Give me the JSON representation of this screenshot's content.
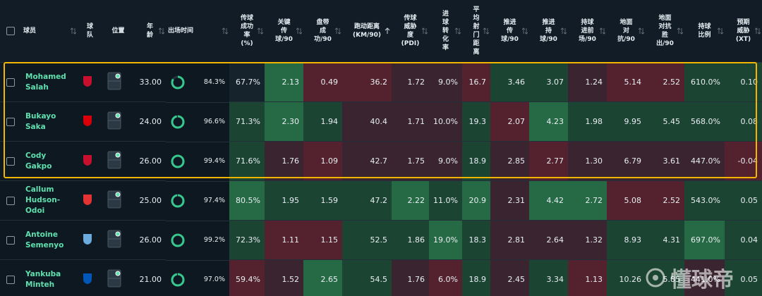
{
  "header": {
    "columns": [
      "球员",
      "球\n队",
      "位置",
      "年\n龄",
      "出场时间",
      "传球\n成功\n率\n(%)",
      "关键\n传\n球/90",
      "盘带\n成\n功/90",
      "跑动距离\n(KM/90)",
      "传球\n威胁\n度\n(PDI)",
      "进\n球\n转\n化\n率",
      "平\n均\n射\n门\n距\n离",
      "推进\n传\n球/90",
      "推进\n持\n球/90",
      "持球\n进前\n场/90",
      "地面\n对\n抗/90",
      "地面\n对抗\n胜\n出/90",
      "持球\n比例",
      "预期\n威胁\n(XT)"
    ]
  },
  "rows": [
    {
      "player": "Mohamed\nSalah",
      "age": "33.00",
      "minutes": "84.3%",
      "stats": [
        "67.7%",
        "2.13",
        "0.49",
        "36.2",
        "1.72",
        "9.0%",
        "16.7",
        "3.46",
        "3.07",
        "1.24",
        "5.14",
        "2.52",
        "610.0%",
        "0.10"
      ]
    },
    {
      "player": "Bukayo\nSaka",
      "age": "24.00",
      "minutes": "96.6%",
      "stats": [
        "71.3%",
        "2.30",
        "1.94",
        "40.4",
        "1.71",
        "10.0%",
        "19.3",
        "2.07",
        "4.23",
        "1.98",
        "9.95",
        "5.45",
        "568.0%",
        "0.08"
      ]
    },
    {
      "player": "Cody\nGakpo",
      "age": "26.00",
      "minutes": "99.4%",
      "stats": [
        "71.6%",
        "1.76",
        "1.09",
        "42.7",
        "1.75",
        "9.0%",
        "18.9",
        "2.85",
        "2.77",
        "1.30",
        "6.79",
        "3.61",
        "447.0%",
        "-0.04"
      ]
    },
    {
      "player": "Callum\nHudson-\nOdoi",
      "age": "25.00",
      "minutes": "97.4%",
      "stats": [
        "80.5%",
        "1.95",
        "1.59",
        "47.2",
        "2.22",
        "11.0%",
        "20.9",
        "2.31",
        "4.42",
        "2.72",
        "5.08",
        "2.52",
        "543.0%",
        "0.05"
      ]
    },
    {
      "player": "Antoine\nSemenyo",
      "age": "26.00",
      "minutes": "99.2%",
      "stats": [
        "72.3%",
        "1.11",
        "1.15",
        "52.5",
        "1.86",
        "19.0%",
        "18.3",
        "2.81",
        "2.64",
        "1.32",
        "8.93",
        "4.31",
        "697.0%",
        "0.04"
      ]
    },
    {
      "player": "Yankuba\nMinteh",
      "age": "21.00",
      "minutes": "97.0%",
      "stats": [
        "59.4%",
        "1.52",
        "2.65",
        "54.5",
        "1.76",
        "6.0%",
        "18.9",
        "2.45",
        "3.34",
        "1.13",
        "10.26",
        "5.85",
        "441.0%",
        "0.05"
      ]
    }
  ],
  "watermark": "懂球帝"
}
